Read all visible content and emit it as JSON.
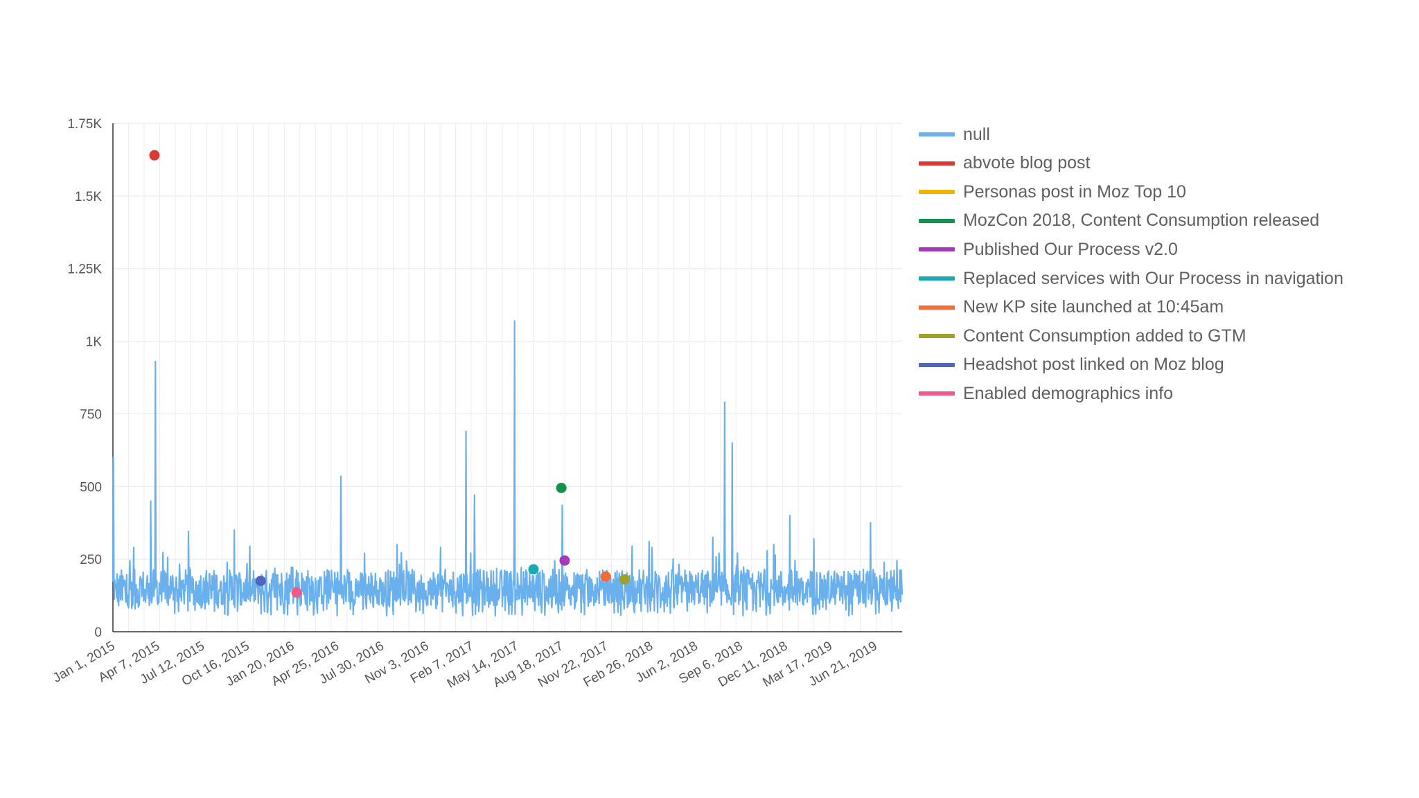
{
  "chart_data": {
    "type": "line",
    "title": "",
    "xlabel": "",
    "ylabel": "",
    "ylim": [
      0,
      1750
    ],
    "y_ticks": [
      0,
      250,
      500,
      750,
      1000,
      1250,
      1500,
      1750
    ],
    "y_tick_labels": [
      "0",
      "250",
      "500",
      "750",
      "1K",
      "1.25K",
      "1.5K",
      "1.75K"
    ],
    "x_range": [
      "2015-01-01",
      "2019-07-31"
    ],
    "x_tick_labels": [
      "Jan 1, 2015",
      "Apr 7, 2015",
      "Jul 12, 2015",
      "Oct 16, 2015",
      "Jan 20, 2016",
      "Apr 25, 2016",
      "Jul 30, 2016",
      "Nov 3, 2016",
      "Feb 7, 2017",
      "May 14, 2017",
      "Aug 18, 2017",
      "Nov 22, 2017",
      "Feb 26, 2018",
      "Jun 2, 2018",
      "Sep 6, 2018",
      "Dec 11, 2018",
      "Mar 17, 2019",
      "Jun 21, 2019"
    ],
    "grid": true,
    "legend_position": "right",
    "series": [
      {
        "name": "null",
        "color": "#6ab0ec",
        "note": "daily series; approximated as baseline band with spikes",
        "baseline": {
          "low": 90,
          "high": 215
        },
        "spikes": [
          {
            "date": "2015-01-02",
            "value": 600
          },
          {
            "date": "2015-02-14",
            "value": 290
          },
          {
            "date": "2015-03-22",
            "value": 450
          },
          {
            "date": "2015-04-01",
            "value": 930
          },
          {
            "date": "2015-06-10",
            "value": 345
          },
          {
            "date": "2015-09-15",
            "value": 350
          },
          {
            "date": "2016-01-25",
            "value": 210
          },
          {
            "date": "2016-04-28",
            "value": 535
          },
          {
            "date": "2016-08-25",
            "value": 300
          },
          {
            "date": "2016-11-25",
            "value": 290
          },
          {
            "date": "2017-01-18",
            "value": 690
          },
          {
            "date": "2017-02-05",
            "value": 470
          },
          {
            "date": "2017-05-01",
            "value": 1070
          },
          {
            "date": "2017-08-10",
            "value": 435
          },
          {
            "date": "2018-01-05",
            "value": 295
          },
          {
            "date": "2018-02-10",
            "value": 310
          },
          {
            "date": "2018-06-25",
            "value": 325
          },
          {
            "date": "2018-07-20",
            "value": 790
          },
          {
            "date": "2018-08-05",
            "value": 650
          },
          {
            "date": "2018-11-01",
            "value": 300
          },
          {
            "date": "2018-12-05",
            "value": 400
          },
          {
            "date": "2019-01-25",
            "value": 320
          },
          {
            "date": "2019-05-25",
            "value": 375
          },
          {
            "date": "2019-07-20",
            "value": 245
          }
        ]
      }
    ],
    "annotations": [
      {
        "name": "abvote blog post",
        "color": "#d93a34",
        "date": "2015-03-30",
        "value": 1640
      },
      {
        "name": "Personas post in Moz Top 10",
        "color": "#f0b400",
        "date": null,
        "value": null
      },
      {
        "name": "MozCon 2018, Content Consumption released",
        "color": "#11934a",
        "date": "2017-08-08",
        "value": 495
      },
      {
        "name": "Published Our Process v2.0",
        "color": "#a43ab8",
        "date": "2017-08-15",
        "value": 245
      },
      {
        "name": "Replaced services with Our Process in navigation",
        "color": "#17aab5",
        "date": "2017-06-10",
        "value": 215
      },
      {
        "name": "New KP site launched at 10:45am",
        "color": "#f46c35",
        "date": "2017-11-10",
        "value": 190
      },
      {
        "name": "Content Consumption added to GTM",
        "color": "#9ea125",
        "date": "2017-12-20",
        "value": 180
      },
      {
        "name": "Headshot post linked on Moz blog",
        "color": "#5165c0",
        "date": "2015-11-10",
        "value": 175
      },
      {
        "name": "Enabled demographics info",
        "color": "#ee5a8a",
        "date": "2016-01-25",
        "value": 135
      }
    ]
  }
}
